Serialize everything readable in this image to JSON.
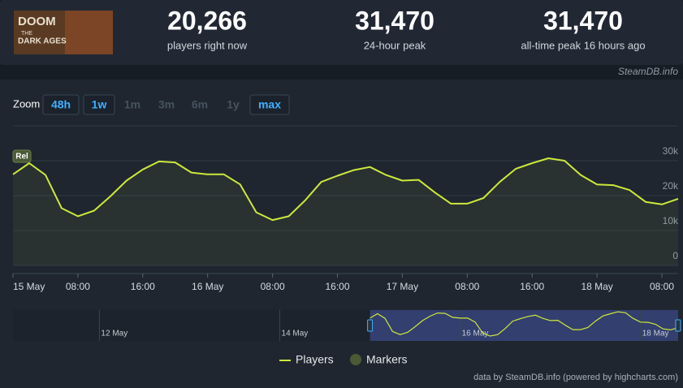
{
  "header": {
    "logo": [
      "DOOM",
      "THE",
      "DARK AGES"
    ],
    "stats": [
      {
        "value": "20,266",
        "label": "players right now"
      },
      {
        "value": "31,470",
        "label": "24-hour peak"
      },
      {
        "value": "31,470",
        "label": "all-time peak 16 hours ago"
      }
    ],
    "credit": "SteamDB.info"
  },
  "zoom": {
    "label": "Zoom",
    "options": [
      "48h",
      "1w",
      "1m",
      "3m",
      "6m",
      "1y",
      "max"
    ],
    "enabled": [
      true,
      true,
      false,
      false,
      false,
      false,
      true
    ]
  },
  "chart_data": {
    "type": "line",
    "x": [
      0,
      2,
      4,
      6,
      8,
      10,
      12,
      14,
      16,
      18,
      20,
      22,
      24,
      26,
      28,
      30,
      32,
      34,
      36,
      38,
      40,
      42,
      44,
      46,
      48,
      50,
      52,
      54,
      56,
      58,
      60,
      62,
      64,
      66,
      68,
      70,
      72,
      74,
      76,
      78,
      80,
      82
    ],
    "series": [
      {
        "name": "Players",
        "color": "#cde83c",
        "values": [
          26100,
          29300,
          25900,
          16400,
          14100,
          15700,
          19800,
          24300,
          27500,
          29800,
          29500,
          26600,
          26100,
          26100,
          23200,
          15200,
          13000,
          14100,
          18600,
          23900,
          25700,
          27300,
          28200,
          25900,
          24300,
          24500,
          20900,
          17700,
          17700,
          19300,
          23900,
          27700,
          29300,
          30700,
          30000,
          25900,
          23200,
          23000,
          21600,
          18200,
          17500,
          19100
        ]
      }
    ],
    "xlim": [
      0,
      82
    ],
    "xticks": [
      {
        "value": 0,
        "label": "15 May"
      },
      {
        "value": 8,
        "label": "08:00"
      },
      {
        "value": 16,
        "label": "16:00"
      },
      {
        "value": 24,
        "label": "16 May"
      },
      {
        "value": 32,
        "label": "08:00"
      },
      {
        "value": 40,
        "label": "16:00"
      },
      {
        "value": 48,
        "label": "17 May"
      },
      {
        "value": 56,
        "label": "08:00"
      },
      {
        "value": 64,
        "label": "16:00"
      },
      {
        "value": 72,
        "label": "18 May"
      },
      {
        "value": 80,
        "label": "08:00"
      }
    ],
    "ylim": [
      0,
      40000
    ],
    "yticks": [
      0,
      {
        "value": 10000,
        "label": "10k"
      },
      {
        "value": 20000,
        "label": "20k"
      },
      {
        "value": 30000,
        "label": "30k"
      }
    ],
    "grid": true,
    "markers": {
      "name": "Markers",
      "color": "#4b5a35",
      "annotations": [
        {
          "x": 0,
          "text": "Rel"
        }
      ]
    },
    "navigator": {
      "xlim": [
        -95,
        82
      ],
      "selection": [
        0,
        82
      ],
      "xticks": [
        {
          "value": -72,
          "label": "12 May"
        },
        {
          "value": -24,
          "label": "14 May"
        },
        {
          "value": 24,
          "label": "16 May"
        },
        {
          "value": 72,
          "label": "18 May"
        }
      ]
    },
    "footer": "data by SteamDB.info (powered by highcharts.com)"
  }
}
